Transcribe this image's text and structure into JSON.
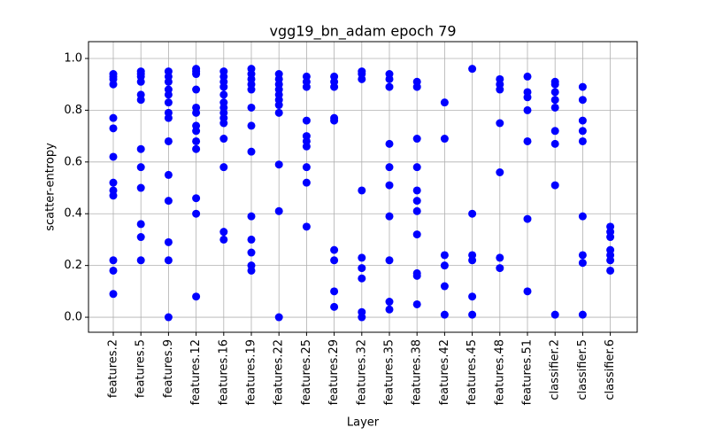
{
  "chart_data": {
    "type": "scatter",
    "title": "vgg19_bn_adam epoch 79",
    "x_label": "Layer",
    "y_label": "scatter-entropy",
    "color": "#0000ff",
    "grid": true,
    "categories": [
      "features.2",
      "features.5",
      "features.9",
      "features.12",
      "features.16",
      "features.19",
      "features.22",
      "features.25",
      "features.29",
      "features.32",
      "features.35",
      "features.38",
      "features.42",
      "features.45",
      "features.48",
      "features.51",
      "classifier.2",
      "classifier.5",
      "classifier.6"
    ],
    "values": [
      [
        0.94,
        0.93,
        0.92,
        0.9,
        0.77,
        0.73,
        0.62,
        0.52,
        0.49,
        0.47,
        0.22,
        0.18,
        0.09
      ],
      [
        0.95,
        0.94,
        0.93,
        0.91,
        0.86,
        0.84,
        0.65,
        0.58,
        0.5,
        0.36,
        0.31,
        0.22
      ],
      [
        0.95,
        0.93,
        0.91,
        0.88,
        0.86,
        0.83,
        0.79,
        0.77,
        0.68,
        0.55,
        0.45,
        0.29,
        0.22,
        0.0
      ],
      [
        0.96,
        0.95,
        0.94,
        0.88,
        0.81,
        0.79,
        0.74,
        0.72,
        0.68,
        0.65,
        0.46,
        0.4,
        0.08
      ],
      [
        0.95,
        0.93,
        0.91,
        0.89,
        0.86,
        0.83,
        0.81,
        0.79,
        0.77,
        0.75,
        0.69,
        0.58,
        0.33,
        0.3
      ],
      [
        0.96,
        0.94,
        0.92,
        0.9,
        0.88,
        0.81,
        0.74,
        0.64,
        0.39,
        0.3,
        0.25,
        0.2,
        0.18
      ],
      [
        0.94,
        0.92,
        0.9,
        0.88,
        0.86,
        0.84,
        0.82,
        0.79,
        0.59,
        0.41,
        0.0
      ],
      [
        0.93,
        0.91,
        0.89,
        0.76,
        0.7,
        0.68,
        0.66,
        0.58,
        0.52,
        0.35
      ],
      [
        0.93,
        0.91,
        0.89,
        0.77,
        0.76,
        0.26,
        0.22,
        0.1,
        0.04
      ],
      [
        0.95,
        0.94,
        0.92,
        0.49,
        0.23,
        0.19,
        0.15,
        0.02,
        0.0
      ],
      [
        0.94,
        0.92,
        0.89,
        0.67,
        0.58,
        0.51,
        0.39,
        0.22,
        0.06,
        0.03
      ],
      [
        0.91,
        0.89,
        0.69,
        0.58,
        0.49,
        0.45,
        0.41,
        0.32,
        0.17,
        0.16,
        0.05
      ],
      [
        0.83,
        0.69,
        0.24,
        0.2,
        0.12,
        0.01
      ],
      [
        0.96,
        0.4,
        0.24,
        0.22,
        0.08,
        0.01
      ],
      [
        0.92,
        0.9,
        0.88,
        0.75,
        0.56,
        0.23,
        0.19
      ],
      [
        0.93,
        0.87,
        0.85,
        0.8,
        0.68,
        0.38,
        0.1
      ],
      [
        0.91,
        0.9,
        0.87,
        0.84,
        0.81,
        0.72,
        0.67,
        0.51,
        0.01
      ],
      [
        0.89,
        0.84,
        0.76,
        0.72,
        0.68,
        0.39,
        0.24,
        0.21,
        0.01
      ],
      [
        0.35,
        0.33,
        0.31,
        0.26,
        0.24,
        0.22,
        0.18
      ]
    ],
    "ylim": [
      -0.058,
      1.065
    ],
    "yticks": [
      {
        "value": 0,
        "label": "0.0"
      },
      0.2,
      0.4,
      0.6,
      0.8,
      {
        "value": 1,
        "label": "1.0"
      }
    ]
  }
}
